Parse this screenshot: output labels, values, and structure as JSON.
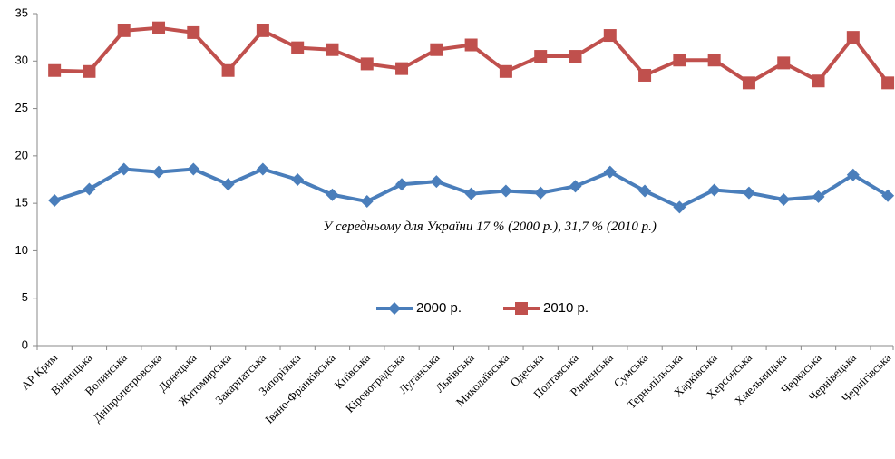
{
  "chart_data": {
    "type": "line",
    "categories": [
      "АР Крим",
      "Вінницька",
      "Волинська",
      "Дніпропетровська",
      "Донецька",
      "Житомирська",
      "Закарпатська",
      "Запорізька",
      "Івано-Франківська",
      "Київська",
      "Кіровоградська",
      "Луганська",
      "Львівська",
      "Миколаївська",
      "Одеська",
      "Полтавська",
      "Рівненська",
      "Сумська",
      "Тернопільська",
      "Харківська",
      "Херсонська",
      "Хмельницька",
      "Черкаська",
      "Чернівецька",
      "Чернігівська"
    ],
    "series": [
      {
        "name": "2000 р.",
        "color": "#4a7ebb",
        "marker": "diamond",
        "values": [
          15.3,
          16.5,
          18.6,
          18.3,
          18.6,
          17.0,
          18.6,
          17.5,
          15.9,
          15.2,
          17.0,
          17.3,
          16.0,
          16.3,
          16.1,
          16.8,
          18.3,
          16.3,
          14.6,
          16.4,
          16.1,
          15.4,
          15.7,
          18.0,
          15.8
        ]
      },
      {
        "name": "2010 р.",
        "color": "#c0504d",
        "marker": "square",
        "values": [
          29.0,
          28.9,
          33.2,
          33.5,
          33.0,
          29.0,
          33.2,
          31.4,
          31.2,
          29.7,
          29.2,
          31.2,
          31.7,
          28.9,
          30.5,
          30.5,
          32.7,
          28.5,
          30.1,
          30.1,
          27.7,
          29.8,
          27.9,
          32.5,
          27.7
        ]
      }
    ],
    "annotation": "У середньому для України 17 % (2000 р.), 31,7 % (2010 р.)",
    "ylim": [
      0,
      35
    ],
    "yticks": [
      0,
      5,
      10,
      15,
      20,
      25,
      30,
      35
    ],
    "grid": false,
    "legend": "center"
  }
}
